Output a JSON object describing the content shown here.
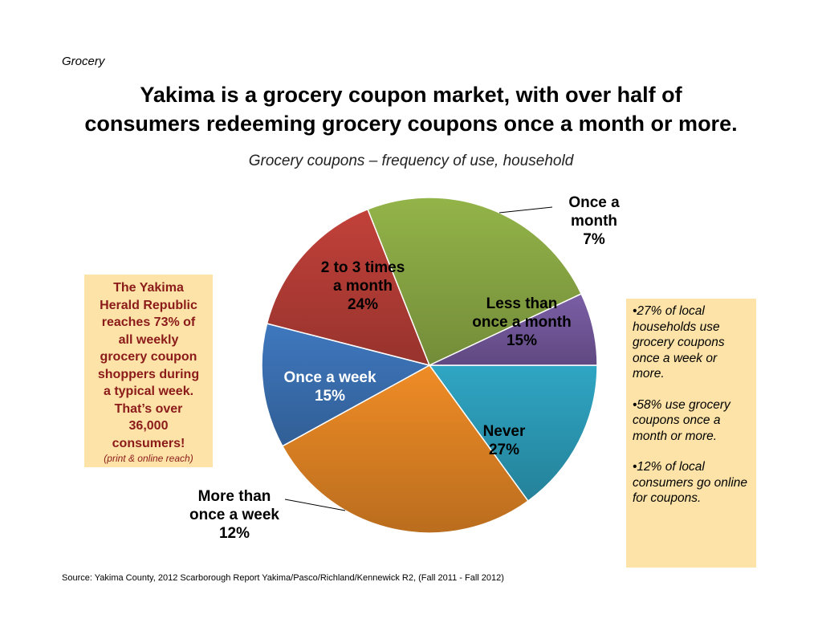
{
  "section_label": "Grocery",
  "headline": {
    "line1": "Yakima is a grocery coupon market, with over half of",
    "line2": "consumers redeeming grocery coupons once a month or more."
  },
  "chart_data": {
    "type": "pie",
    "title": "Grocery coupons – frequency of use, household",
    "slices": [
      {
        "label_lines": [
          "Less than",
          "once a month",
          "15%"
        ],
        "value": 15,
        "color": "#2fa6c4"
      },
      {
        "label_lines": [
          "Never",
          "27%"
        ],
        "value": 27,
        "color": "#ef8c26"
      },
      {
        "label_lines": [
          "More than",
          "once a week",
          "12%"
        ],
        "value": 12,
        "color": "#3f78bf"
      },
      {
        "label_lines": [
          "Once a week",
          "15%"
        ],
        "value": 15,
        "color": "#c2413a"
      },
      {
        "label_lines": [
          "2 to 3 times",
          "a month",
          "24%"
        ],
        "value": 24,
        "color": "#93b449"
      },
      {
        "label_lines": [
          "Once a",
          "month",
          "7%"
        ],
        "value": 7,
        "color": "#7b5ea6"
      }
    ]
  },
  "left_callout": {
    "lines": [
      "The Yakima",
      "Herald Republic",
      "reaches 73% of",
      "all weekly",
      "grocery coupon",
      "shoppers during",
      "a typical week.",
      "That’s over",
      "36,000",
      "consumers!"
    ],
    "note": "(print & online reach)"
  },
  "right_callout": {
    "bullets": [
      "•27% of local households use grocery coupons once a week or more.",
      "•58% use grocery coupons once a month or more.",
      "•12% of local consumers go online for coupons."
    ]
  },
  "source": "Source: Yakima County, 2012 Scarborough Report Yakima/Pasco/Richland/Kennewick R2, (Fall 2011 - Fall 2012)"
}
